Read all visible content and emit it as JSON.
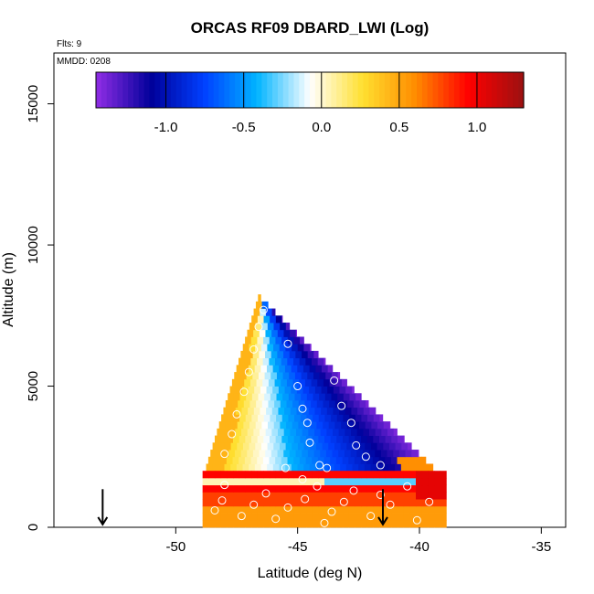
{
  "chart_data": {
    "type": "heatmap",
    "title": "ORCAS RF09 DBARD_LWI (Log)",
    "annotations": {
      "flights": "Flts: 9",
      "date": "MMDD: 0208"
    },
    "xlabel": "Latitude (deg N)",
    "ylabel": "Altitude (m)",
    "xlim": [
      -55,
      -34
    ],
    "ylim": [
      0,
      16800
    ],
    "x_ticks": [
      -50,
      -45,
      -40,
      -35
    ],
    "x_tick_labels": [
      "-50",
      "-45",
      "-40",
      "-35"
    ],
    "y_ticks": [
      0,
      5000,
      10000,
      15000
    ],
    "y_tick_labels": [
      "0",
      "5000",
      "10000",
      "15000"
    ],
    "colorbar": {
      "range": [
        -1.45,
        1.3
      ],
      "ticks": [
        -1.0,
        -0.5,
        0.0,
        0.5,
        1.0
      ],
      "tick_labels": [
        "-1.0",
        "-0.5",
        "0.0",
        "0.5",
        "1.0"
      ],
      "colors": [
        "#8a2be2",
        "#00009a",
        "#0040ff",
        "#00b4ff",
        "#ffffff",
        "#ffe030",
        "#ff8c00",
        "#ff0000",
        "#a01010"
      ]
    },
    "grid": false,
    "legend": "colorbar-top",
    "arrows": [
      {
        "x": -53.0
      },
      {
        "x": -41.5
      }
    ],
    "region": {
      "description": "Triangular patch of binned values; high values at the north-west edge and low values at the south-east edge; warm layer below ~2000 m",
      "vertices": [
        [
          -48.8,
          2000
        ],
        [
          -46.6,
          8200
        ],
        [
          -39.3,
          2000
        ]
      ],
      "boundary_layer": {
        "lat_range": [
          -48.9,
          -38.9
        ],
        "alt_range": [
          0,
          2000
        ]
      }
    },
    "sample_points": [
      [
        -48.4,
        600
      ],
      [
        -48.1,
        950
      ],
      [
        -48.0,
        1500
      ],
      [
        -47.3,
        400
      ],
      [
        -46.8,
        800
      ],
      [
        -46.3,
        1200
      ],
      [
        -45.9,
        300
      ],
      [
        -45.4,
        700
      ],
      [
        -44.7,
        1000
      ],
      [
        -44.2,
        1450
      ],
      [
        -43.9,
        150
      ],
      [
        -43.6,
        550
      ],
      [
        -43.1,
        900
      ],
      [
        -42.7,
        1300
      ],
      [
        -42.0,
        400
      ],
      [
        -41.6,
        1150
      ],
      [
        -41.2,
        800
      ],
      [
        -40.5,
        1450
      ],
      [
        -40.1,
        250
      ],
      [
        -39.6,
        900
      ],
      [
        -48.0,
        2600
      ],
      [
        -47.7,
        3300
      ],
      [
        -47.5,
        4000
      ],
      [
        -47.2,
        4800
      ],
      [
        -47.0,
        5500
      ],
      [
        -46.8,
        6300
      ],
      [
        -46.6,
        7100
      ],
      [
        -46.4,
        7700
      ],
      [
        -45.4,
        6500
      ],
      [
        -45.0,
        5000
      ],
      [
        -44.8,
        4200
      ],
      [
        -44.6,
        3700
      ],
      [
        -44.5,
        3000
      ],
      [
        -44.1,
        2200
      ],
      [
        -43.5,
        5200
      ],
      [
        -43.2,
        4300
      ],
      [
        -42.8,
        3700
      ],
      [
        -42.6,
        2900
      ],
      [
        -42.2,
        2500
      ],
      [
        -41.6,
        2200
      ],
      [
        -45.5,
        2100
      ],
      [
        -44.8,
        1700
      ],
      [
        -43.8,
        2100
      ]
    ]
  }
}
